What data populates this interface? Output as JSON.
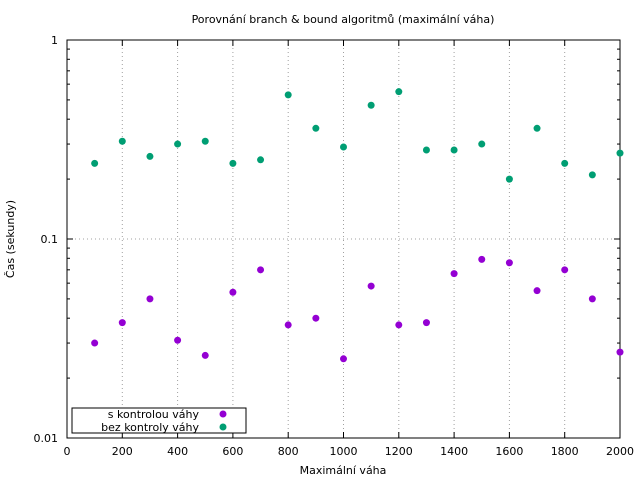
{
  "chart_data": {
    "type": "scatter",
    "title": "Porovnání branch & bound algoritmů (maximální váha)",
    "xlabel": "Maximální váha",
    "ylabel": "Čas (sekundy)",
    "xlim": [
      0,
      2000
    ],
    "ylim": [
      0.01,
      1
    ],
    "yscale": "log",
    "grid": true,
    "legend_position": "bottom-left",
    "x_ticks": [
      "0",
      "200",
      "400",
      "600",
      "800",
      "1000",
      "1200",
      "1400",
      "1600",
      "1800",
      "2000"
    ],
    "y_ticks": [
      "0.01",
      "0.1",
      "1"
    ],
    "x": [
      100,
      200,
      300,
      400,
      500,
      600,
      700,
      800,
      900,
      1000,
      1100,
      1200,
      1300,
      1400,
      1500,
      1600,
      1700,
      1800,
      1900,
      2000
    ],
    "series": [
      {
        "name": "s kontrolou váhy",
        "color": "#9400d3",
        "values": [
          0.03,
          0.038,
          0.05,
          0.031,
          0.026,
          0.054,
          0.07,
          0.037,
          0.04,
          0.025,
          0.058,
          0.037,
          0.038,
          0.067,
          0.079,
          0.076,
          0.055,
          0.07,
          0.05,
          0.027
        ]
      },
      {
        "name": "bez kontroly váhy",
        "color": "#009e73",
        "values": [
          0.24,
          0.31,
          0.26,
          0.3,
          0.31,
          0.24,
          0.25,
          0.53,
          0.36,
          0.29,
          0.47,
          0.55,
          0.28,
          0.28,
          0.3,
          0.2,
          0.36,
          0.24,
          0.21,
          0.27
        ]
      }
    ]
  }
}
